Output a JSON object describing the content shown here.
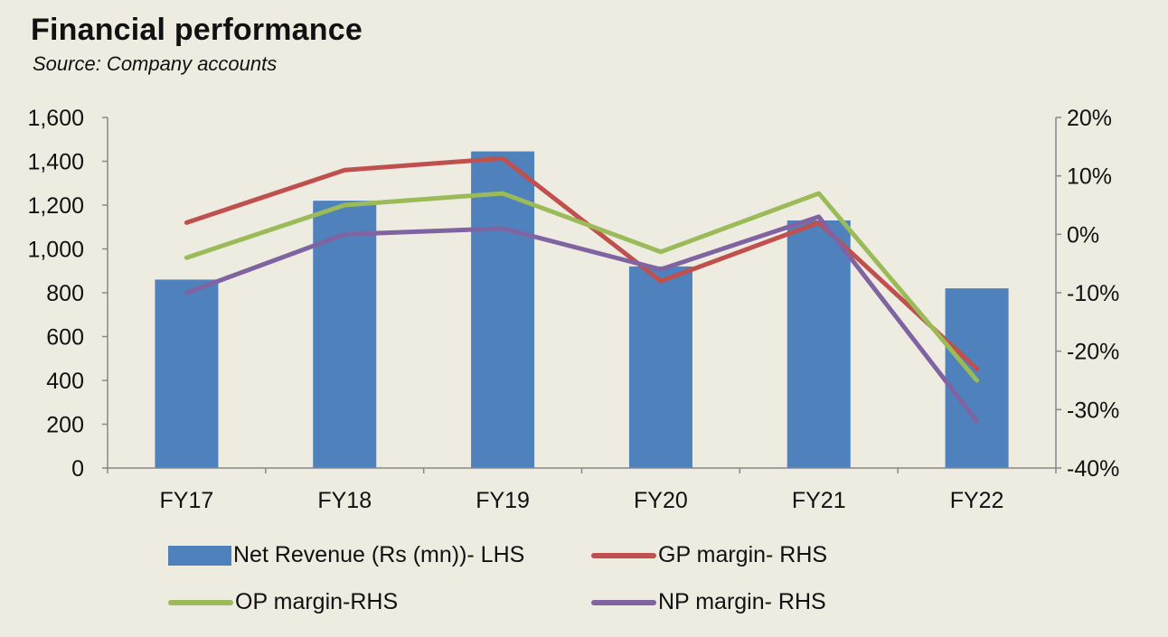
{
  "title": "Financial performance",
  "subtitle": "Source: Company accounts",
  "colors": {
    "bar": "#4f81bd",
    "gp": "#c0504d",
    "op": "#9bbb59",
    "np": "#8064a2"
  },
  "chart_data": {
    "type": "bar+line",
    "categories": [
      "FY17",
      "FY18",
      "FY19",
      "FY20",
      "FY21",
      "FY22"
    ],
    "left_axis": {
      "ylim": [
        0,
        1600
      ],
      "ticks": [
        "0",
        "200",
        "400",
        "600",
        "800",
        "1,000",
        "1,200",
        "1,400",
        "1,600"
      ]
    },
    "right_axis": {
      "ylim": [
        -40,
        20
      ],
      "ticks": [
        "-40%",
        "-30%",
        "-20%",
        "-10%",
        "0%",
        "10%",
        "20%"
      ]
    },
    "series": [
      {
        "name": "Net Revenue (Rs (mn))- LHS",
        "type": "bar",
        "axis": "left",
        "values": [
          860,
          1220,
          1445,
          920,
          1130,
          820
        ]
      },
      {
        "name": "GP margin- RHS",
        "type": "line",
        "axis": "right",
        "values": [
          2,
          11,
          13,
          -8,
          2,
          -23
        ]
      },
      {
        "name": "OP margin-RHS",
        "type": "line",
        "axis": "right",
        "values": [
          -4,
          5,
          7,
          -3,
          7,
          -25
        ]
      },
      {
        "name": "NP margin- RHS",
        "type": "line",
        "axis": "right",
        "values": [
          -10,
          0,
          1,
          -6,
          3,
          -32
        ]
      }
    ],
    "grid": false,
    "legend": "bottom"
  }
}
